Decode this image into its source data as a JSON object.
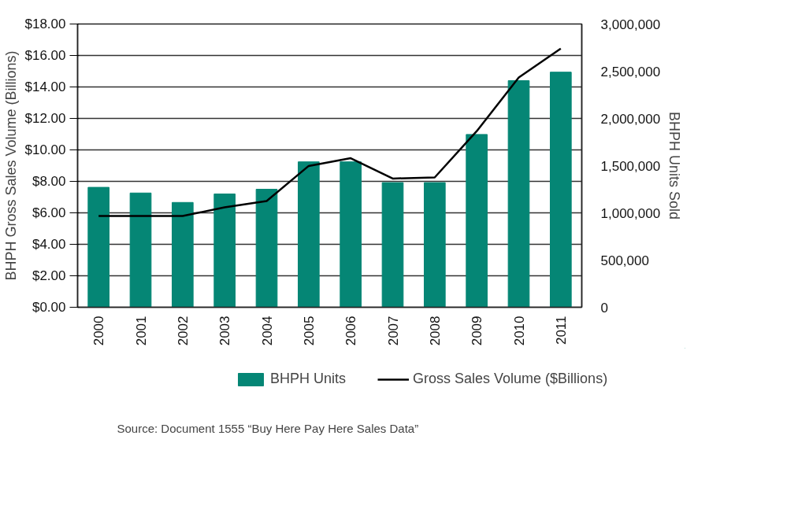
{
  "chart_data": {
    "type": "bar",
    "ylabel": "BHPH Gross Sales Volume (Billions)",
    "y2label": "BHPH Units Sold",
    "categories": [
      "2000",
      "2001",
      "2002",
      "2003",
      "2004",
      "2005",
      "2006",
      "2007",
      "2008",
      "2009",
      "2010",
      "2011"
    ],
    "series": [
      {
        "name": "BHPH Units",
        "axis": "y2",
        "color": "#058675",
        "values": [
          1270000,
          1210000,
          1110000,
          1200000,
          1250000,
          1540000,
          1540000,
          1320000,
          1320000,
          1830000,
          2400000,
          2490000
        ]
      },
      {
        "name": "Gross Sales Volume ($Billions)",
        "type": "line",
        "axis": "y",
        "color": "#000000",
        "values": [
          5.8,
          5.8,
          5.8,
          6.35,
          6.75,
          8.98,
          9.47,
          8.18,
          8.25,
          11.19,
          14.6,
          16.44
        ]
      }
    ],
    "ylim": [
      0,
      18
    ],
    "yticks": [
      {
        "value": 0,
        "label": "$0.00"
      },
      {
        "value": 2,
        "label": "$2.00"
      },
      {
        "value": 4,
        "label": "$4.00"
      },
      {
        "value": 6,
        "label": "$6.00"
      },
      {
        "value": 8,
        "label": "$8.00"
      },
      {
        "value": 10,
        "label": "$10.00"
      },
      {
        "value": 12,
        "label": "$12.00"
      },
      {
        "value": 14,
        "label": "$14.00"
      },
      {
        "value": 16,
        "label": "$16.00"
      },
      {
        "value": 18,
        "label": "$18.00"
      }
    ],
    "y2lim": [
      0,
      3000000
    ],
    "y2ticks": [
      0,
      {
        "value": 500000,
        "label": "500,000"
      },
      {
        "value": 1000000,
        "label": "1,000,000"
      },
      {
        "value": 1500000,
        "label": "1,500,000"
      },
      {
        "value": 2000000,
        "label": "2,000,000"
      },
      {
        "value": 2500000,
        "label": "2,500,000"
      },
      {
        "value": 3000000,
        "label": "3,000,000"
      }
    ],
    "grid": "y",
    "legend": "bottom",
    "annotations": [
      "Source: Document 1555 “Buy Here Pay Here Sales Data”"
    ]
  }
}
